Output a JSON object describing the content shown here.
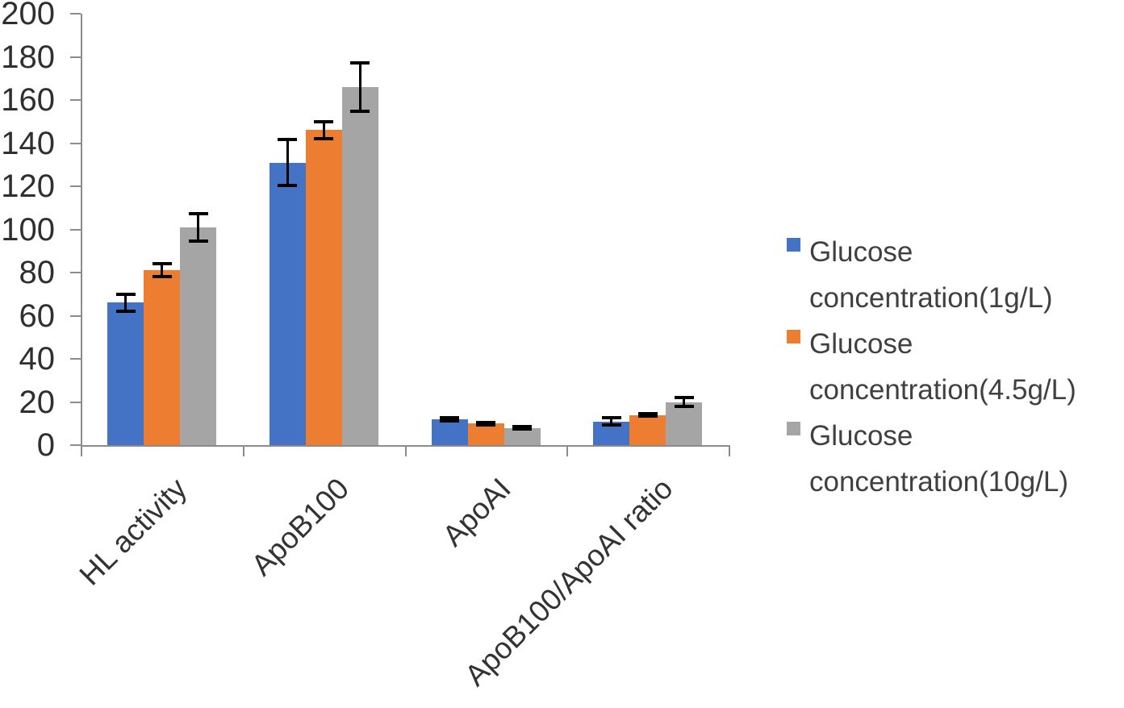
{
  "chart_data": {
    "type": "bar",
    "title": "",
    "xlabel": "",
    "ylabel": "",
    "categories": [
      "HL activity",
      "ApoB100",
      "ApoAI",
      "ApoB100/ApoAI ratio"
    ],
    "series": [
      {
        "name": "Glucose concentration(1g/L)",
        "color": "#4472C4",
        "values": [
          66,
          131,
          12,
          11
        ],
        "errors": [
          4,
          10.5,
          0.6,
          1.7
        ]
      },
      {
        "name": "Glucose concentration(4.5g/L)",
        "color": "#ED7D31",
        "values": [
          81,
          146,
          10,
          14
        ],
        "errors": [
          3,
          4,
          0.6,
          0.6
        ]
      },
      {
        "name": "Glucose concentration(10g/L)",
        "color": "#A5A5A5",
        "values": [
          101,
          166,
          8,
          20
        ],
        "errors": [
          6.3,
          11.3,
          0.6,
          2
        ]
      }
    ],
    "y_axis": {
      "min": 0,
      "max": 200,
      "step": 20,
      "ticks": [
        0,
        20,
        40,
        60,
        80,
        100,
        120,
        140,
        160,
        180,
        200
      ]
    },
    "grid": false,
    "error_bars": true,
    "legend_position": "right",
    "axis_color": "#8c8c8c",
    "error_bar_color": "#000000",
    "text_color": "#2f2f2f"
  }
}
